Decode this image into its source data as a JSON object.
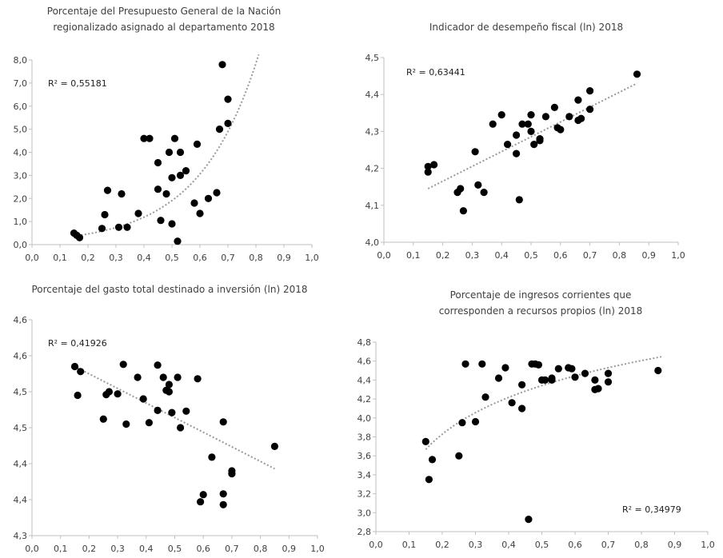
{
  "chart_data": [
    {
      "type": "scatter",
      "title_lines": [
        "Porcentaje del Presupuesto General de la Nación",
        "regionalizado asignado al departamento 2018"
      ],
      "r2_label": "R² = 0,55181",
      "xlim": [
        0,
        1
      ],
      "ylim": [
        0,
        8
      ],
      "x_ticks": [
        "0,0",
        "0,1",
        "0,2",
        "0,3",
        "0,4",
        "0,5",
        "0,6",
        "0,7",
        "0,8",
        "0,9",
        "1,0"
      ],
      "y_ticks": [
        "0,0",
        "1,0",
        "2,0",
        "3,0",
        "4,0",
        "5,0",
        "6,0",
        "7,0",
        "8,0"
      ],
      "y_tick_values": [
        0,
        1,
        2,
        3,
        4,
        5,
        6,
        7,
        8
      ],
      "trendline": {
        "kind": "exponential",
        "a": 0.18,
        "b": 4.72,
        "x_range": [
          0.15,
          0.81
        ]
      },
      "points": [
        [
          0.15,
          0.5
        ],
        [
          0.16,
          0.4
        ],
        [
          0.17,
          0.3
        ],
        [
          0.25,
          0.7
        ],
        [
          0.26,
          1.3
        ],
        [
          0.27,
          2.35
        ],
        [
          0.31,
          0.75
        ],
        [
          0.32,
          2.2
        ],
        [
          0.34,
          0.75
        ],
        [
          0.38,
          1.35
        ],
        [
          0.4,
          4.6
        ],
        [
          0.42,
          4.6
        ],
        [
          0.45,
          3.55
        ],
        [
          0.45,
          2.4
        ],
        [
          0.46,
          1.05
        ],
        [
          0.48,
          2.2
        ],
        [
          0.49,
          4.0
        ],
        [
          0.5,
          0.9
        ],
        [
          0.5,
          2.9
        ],
        [
          0.51,
          4.6
        ],
        [
          0.52,
          0.15
        ],
        [
          0.53,
          4.0
        ],
        [
          0.53,
          3.0
        ],
        [
          0.55,
          3.2
        ],
        [
          0.58,
          1.8
        ],
        [
          0.59,
          4.35
        ],
        [
          0.6,
          1.35
        ],
        [
          0.63,
          2.0
        ],
        [
          0.66,
          2.25
        ],
        [
          0.67,
          5.0
        ],
        [
          0.68,
          7.8
        ],
        [
          0.7,
          6.3
        ],
        [
          0.7,
          5.25
        ]
      ]
    },
    {
      "type": "scatter",
      "title_lines": [
        "Indicador de desempeño fiscal (ln) 2018"
      ],
      "r2_label": "R² = 0,63441",
      "xlim": [
        0,
        1
      ],
      "ylim": [
        4.0,
        4.5
      ],
      "x_ticks": [
        "0,0",
        "0,1",
        "0,2",
        "0,3",
        "0,4",
        "0,5",
        "0,6",
        "0,7",
        "0,8",
        "0,9",
        "1,0"
      ],
      "y_ticks": [
        "4,0",
        "4,1",
        "4,2",
        "4,3",
        "4,4",
        "4,5"
      ],
      "y_tick_values": [
        4.0,
        4.1,
        4.2,
        4.3,
        4.4,
        4.5
      ],
      "trendline": {
        "kind": "linear",
        "x1": 0.15,
        "y1": 4.145,
        "x2": 0.86,
        "y2": 4.43
      },
      "points": [
        [
          0.15,
          4.205
        ],
        [
          0.15,
          4.19
        ],
        [
          0.17,
          4.21
        ],
        [
          0.25,
          4.135
        ],
        [
          0.26,
          4.145
        ],
        [
          0.27,
          4.085
        ],
        [
          0.31,
          4.245
        ],
        [
          0.32,
          4.155
        ],
        [
          0.34,
          4.135
        ],
        [
          0.37,
          4.32
        ],
        [
          0.4,
          4.345
        ],
        [
          0.42,
          4.265
        ],
        [
          0.45,
          4.29
        ],
        [
          0.45,
          4.24
        ],
        [
          0.46,
          4.115
        ],
        [
          0.47,
          4.32
        ],
        [
          0.49,
          4.32
        ],
        [
          0.5,
          4.3
        ],
        [
          0.5,
          4.345
        ],
        [
          0.51,
          4.265
        ],
        [
          0.53,
          4.28
        ],
        [
          0.53,
          4.275
        ],
        [
          0.55,
          4.34
        ],
        [
          0.58,
          4.365
        ],
        [
          0.59,
          4.31
        ],
        [
          0.6,
          4.305
        ],
        [
          0.63,
          4.34
        ],
        [
          0.66,
          4.385
        ],
        [
          0.66,
          4.33
        ],
        [
          0.67,
          4.335
        ],
        [
          0.7,
          4.41
        ],
        [
          0.7,
          4.36
        ],
        [
          0.86,
          4.455
        ]
      ]
    },
    {
      "type": "scatter",
      "title_lines": [
        "Porcentaje del gasto total destinado a inversión (ln) 2018"
      ],
      "r2_label": "R² = 0,41926",
      "xlim": [
        0,
        1
      ],
      "ylim": [
        4.3,
        4.6
      ],
      "x_ticks": [
        "0,0",
        "0,1",
        "0,2",
        "0,3",
        "0,4",
        "0,5",
        "0,6",
        "0,7",
        "0,8",
        "0,9",
        "1,0"
      ],
      "y_ticks": [
        "4,3",
        "4,4",
        "4,4",
        "4,5",
        "4,5",
        "4,6",
        "4,6"
      ],
      "y_tick_values": [
        4.3,
        4.35,
        4.4,
        4.45,
        4.5,
        4.55,
        4.6
      ],
      "trendline": {
        "kind": "linear",
        "x1": 0.15,
        "y1": 4.535,
        "x2": 0.85,
        "y2": 4.393
      },
      "points": [
        [
          0.15,
          4.535
        ],
        [
          0.16,
          4.495
        ],
        [
          0.17,
          4.528
        ],
        [
          0.25,
          4.462
        ],
        [
          0.26,
          4.496
        ],
        [
          0.27,
          4.5
        ],
        [
          0.3,
          4.497
        ],
        [
          0.32,
          4.538
        ],
        [
          0.33,
          4.455
        ],
        [
          0.37,
          4.52
        ],
        [
          0.39,
          4.49
        ],
        [
          0.41,
          4.457
        ],
        [
          0.44,
          4.537
        ],
        [
          0.44,
          4.474
        ],
        [
          0.46,
          4.52
        ],
        [
          0.47,
          4.502
        ],
        [
          0.48,
          4.51
        ],
        [
          0.48,
          4.5
        ],
        [
          0.49,
          4.471
        ],
        [
          0.51,
          4.52
        ],
        [
          0.52,
          4.45
        ],
        [
          0.54,
          4.473
        ],
        [
          0.58,
          4.518
        ],
        [
          0.59,
          4.347
        ],
        [
          0.6,
          4.357
        ],
        [
          0.63,
          4.409
        ],
        [
          0.67,
          4.358
        ],
        [
          0.67,
          4.343
        ],
        [
          0.67,
          4.458
        ],
        [
          0.7,
          4.39
        ],
        [
          0.7,
          4.386
        ],
        [
          0.85,
          4.424
        ]
      ]
    },
    {
      "type": "scatter",
      "title_lines": [
        "Porcentaje de ingresos corrientes que",
        "corresponden a recursos propios (ln) 2018"
      ],
      "r2_label": "R² = 0,34979",
      "xlim": [
        0,
        1
      ],
      "ylim": [
        2.8,
        4.8
      ],
      "x_ticks": [
        "0,0",
        "0,1",
        "0,2",
        "0,3",
        "0,4",
        "0,5",
        "0,6",
        "0,7",
        "0,8",
        "0,9",
        "1,0"
      ],
      "y_ticks": [
        "2,8",
        "3,0",
        "3,2",
        "3,4",
        "3,6",
        "3,8",
        "4,0",
        "4,2",
        "4,4",
        "4,6",
        "4,8"
      ],
      "y_tick_values": [
        2.8,
        3.0,
        3.2,
        3.4,
        3.6,
        3.8,
        4.0,
        4.2,
        4.4,
        4.6,
        4.8
      ],
      "trendline": {
        "kind": "logarithmic",
        "a": 4.73,
        "b": 0.56,
        "x_range": [
          0.15,
          0.86
        ]
      },
      "points": [
        [
          0.15,
          3.75
        ],
        [
          0.16,
          3.35
        ],
        [
          0.17,
          3.56
        ],
        [
          0.25,
          3.6
        ],
        [
          0.26,
          3.95
        ],
        [
          0.27,
          4.57
        ],
        [
          0.3,
          3.96
        ],
        [
          0.32,
          4.57
        ],
        [
          0.33,
          4.22
        ],
        [
          0.37,
          4.42
        ],
        [
          0.39,
          4.53
        ],
        [
          0.41,
          4.16
        ],
        [
          0.44,
          4.1
        ],
        [
          0.44,
          4.35
        ],
        [
          0.46,
          2.93
        ],
        [
          0.47,
          4.57
        ],
        [
          0.48,
          4.57
        ],
        [
          0.49,
          4.56
        ],
        [
          0.5,
          4.4
        ],
        [
          0.51,
          4.4
        ],
        [
          0.53,
          4.4
        ],
        [
          0.53,
          4.42
        ],
        [
          0.55,
          4.52
        ],
        [
          0.58,
          4.53
        ],
        [
          0.59,
          4.52
        ],
        [
          0.6,
          4.43
        ],
        [
          0.63,
          4.47
        ],
        [
          0.66,
          4.4
        ],
        [
          0.66,
          4.3
        ],
        [
          0.67,
          4.31
        ],
        [
          0.7,
          4.47
        ],
        [
          0.7,
          4.38
        ],
        [
          0.85,
          4.5
        ]
      ]
    }
  ]
}
